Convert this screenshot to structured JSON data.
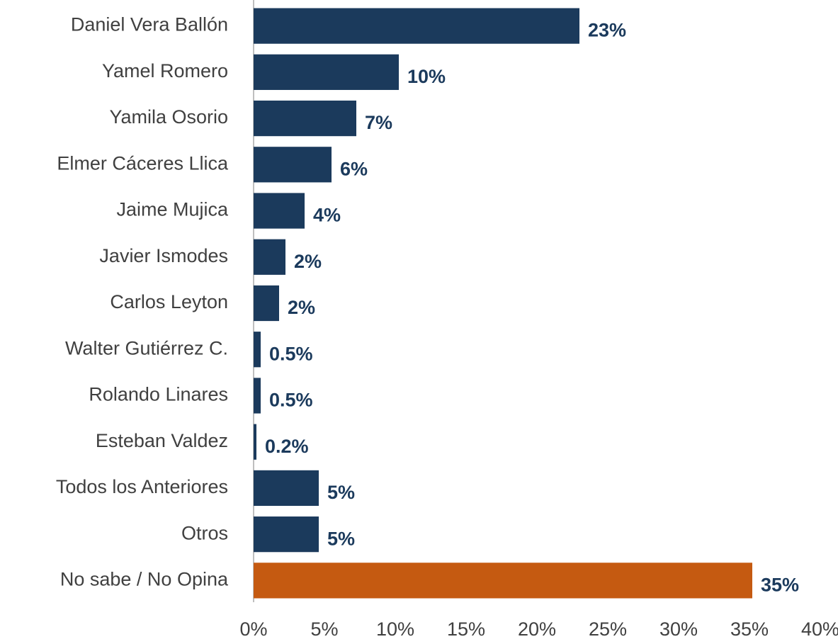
{
  "chart_data": {
    "type": "bar",
    "orientation": "horizontal",
    "categories": [
      "Daniel Vera Ballón",
      "Yamel Romero",
      "Yamila Osorio",
      "Elmer Cáceres Llica",
      "Jaime Mujica",
      "Javier Ismodes",
      "Carlos Leyton",
      "Walter Gutiérrez C.",
      "Rolando Linares",
      "Esteban Valdez",
      "Todos los Anteriores",
      "Otros",
      "No sabe / No Opina"
    ],
    "values": [
      23,
      10.25,
      7.25,
      5.5,
      3.6,
      2.25,
      1.8,
      0.5,
      0.5,
      0.2,
      4.6,
      4.6,
      35.2
    ],
    "value_labels": [
      "23%",
      "10%",
      "7%",
      "6%",
      "4%",
      "2%",
      "2%",
      "0.5%",
      "0.5%",
      "0.2%",
      "5%",
      "5%",
      "35%"
    ],
    "colors": [
      "#1b3a5c",
      "#1b3a5c",
      "#1b3a5c",
      "#1b3a5c",
      "#1b3a5c",
      "#1b3a5c",
      "#1b3a5c",
      "#1b3a5c",
      "#1b3a5c",
      "#1b3a5c",
      "#1b3a5c",
      "#1b3a5c",
      "#c55a11"
    ],
    "xlim": [
      0,
      40
    ],
    "xticks": [
      {
        "value": 0,
        "label": "0%"
      },
      {
        "value": 5,
        "label": "5%"
      },
      {
        "value": 10,
        "label": "10%"
      },
      {
        "value": 15,
        "label": "15%"
      },
      {
        "value": 20,
        "label": "20%"
      },
      {
        "value": 25,
        "label": "25%"
      },
      {
        "value": 30,
        "label": "30%"
      },
      {
        "value": 35,
        "label": "35%"
      },
      {
        "value": 40,
        "label": "40%"
      }
    ],
    "grid": false
  }
}
